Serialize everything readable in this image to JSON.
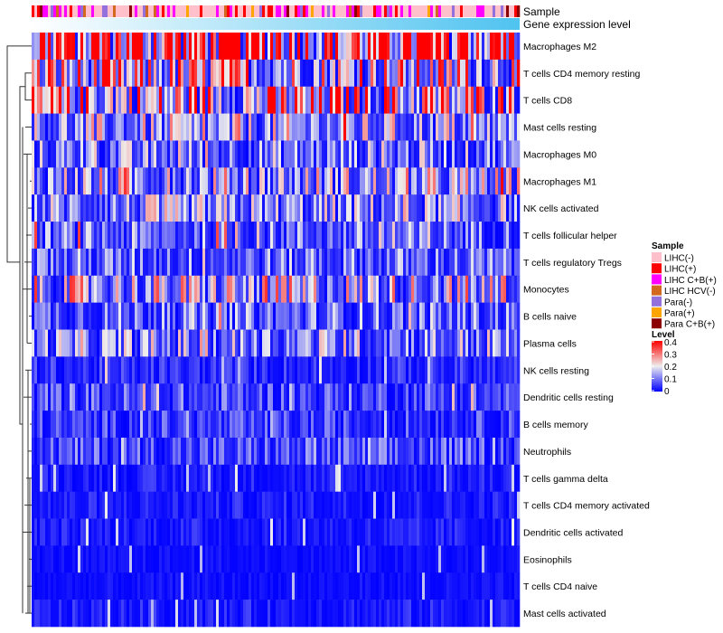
{
  "chart_data": {
    "type": "heatmap",
    "title": "",
    "annotation_labels": [
      "Sample",
      "Gene expression level"
    ],
    "rows": [
      {
        "name": "Macrophages M2",
        "mean_level": 0.3
      },
      {
        "name": "T cells CD4 memory resting",
        "mean_level": 0.15
      },
      {
        "name": "T cells CD8",
        "mean_level": 0.17
      },
      {
        "name": "Mast cells resting",
        "mean_level": 0.1
      },
      {
        "name": "Macrophages M0",
        "mean_level": 0.08
      },
      {
        "name": "Macrophages M1",
        "mean_level": 0.11
      },
      {
        "name": "NK cells activated",
        "mean_level": 0.09
      },
      {
        "name": "T cells follicular helper",
        "mean_level": 0.07
      },
      {
        "name": "T cells regulatory  Tregs",
        "mean_level": 0.07
      },
      {
        "name": "Monocytes",
        "mean_level": 0.12
      },
      {
        "name": "B cells naive",
        "mean_level": 0.07
      },
      {
        "name": "Plasma cells",
        "mean_level": 0.09
      },
      {
        "name": "NK cells resting",
        "mean_level": 0.03
      },
      {
        "name": "Dendritic cells resting",
        "mean_level": 0.05
      },
      {
        "name": "B cells memory",
        "mean_level": 0.04
      },
      {
        "name": "Neutrophils",
        "mean_level": 0.05
      },
      {
        "name": "T cells gamma delta",
        "mean_level": 0.02
      },
      {
        "name": "T cells CD4 memory activated",
        "mean_level": 0.02
      },
      {
        "name": "Dendritic cells activated",
        "mean_level": 0.02
      },
      {
        "name": "Eosinophils",
        "mean_level": 0.01
      },
      {
        "name": "T cells CD4 naive",
        "mean_level": 0.01
      },
      {
        "name": "Mast cells activated",
        "mean_level": 0.02
      }
    ],
    "legend": {
      "placement": "right",
      "sample": {
        "title": "Sample",
        "items": [
          {
            "label": "LIHC(-)",
            "color": "#FFC0CB",
            "weight": 0.55
          },
          {
            "label": "LIHC(+)",
            "color": "#FF0000",
            "weight": 0.12
          },
          {
            "label": "LIHC C+B(+)",
            "color": "#FF00FF",
            "weight": 0.14
          },
          {
            "label": "LIHC HCV(-)",
            "color": "#D2691E",
            "weight": 0.04
          },
          {
            "label": "Para(-)",
            "color": "#9370DB",
            "weight": 0.08
          },
          {
            "label": "Para(+)",
            "color": "#FFA500",
            "weight": 0.04
          },
          {
            "label": "Para C+B(+)",
            "color": "#8B0000",
            "weight": 0.03
          }
        ]
      },
      "level": {
        "title": "Level",
        "ticks": [
          "0.4",
          "0.3",
          "0.2",
          "0.1",
          "0"
        ],
        "range": [
          0,
          0.4
        ],
        "colors": [
          "#0000FF",
          "#EEEEEE",
          "#FF0000"
        ]
      }
    },
    "gene_expression_gradient": [
      "#FFFFFF",
      "#4FC3F0"
    ]
  }
}
